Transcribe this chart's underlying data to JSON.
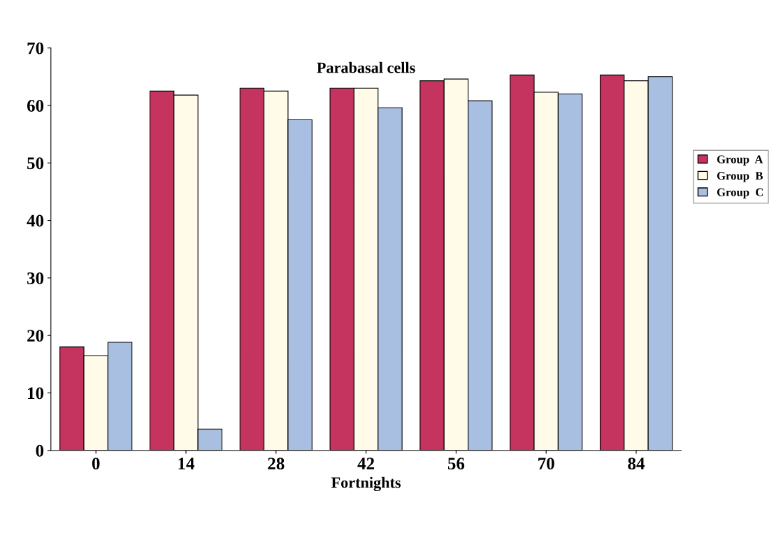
{
  "chart_data": {
    "type": "bar",
    "title": "Parabasal cells",
    "xlabel": "Fortnights",
    "categories": [
      "0",
      "14",
      "28",
      "42",
      "56",
      "70",
      "84"
    ],
    "series": [
      {
        "name": "Group  A",
        "color": "#c4345e",
        "values": [
          18,
          62.5,
          63,
          63,
          64.3,
          65.3,
          65.3
        ]
      },
      {
        "name": "Group  B",
        "color": "#fffbe8",
        "values": [
          16.5,
          61.8,
          62.5,
          63,
          64.6,
          62.3,
          64.3
        ]
      },
      {
        "name": "Group  C",
        "color": "#a8bfe2",
        "values": [
          18.8,
          3.7,
          57.5,
          59.6,
          60.8,
          62,
          65
        ]
      }
    ],
    "ylim": [
      0,
      70
    ],
    "yticks": [
      0,
      10,
      20,
      30,
      40,
      50,
      60,
      70
    ],
    "grid": false,
    "legend": "right"
  }
}
